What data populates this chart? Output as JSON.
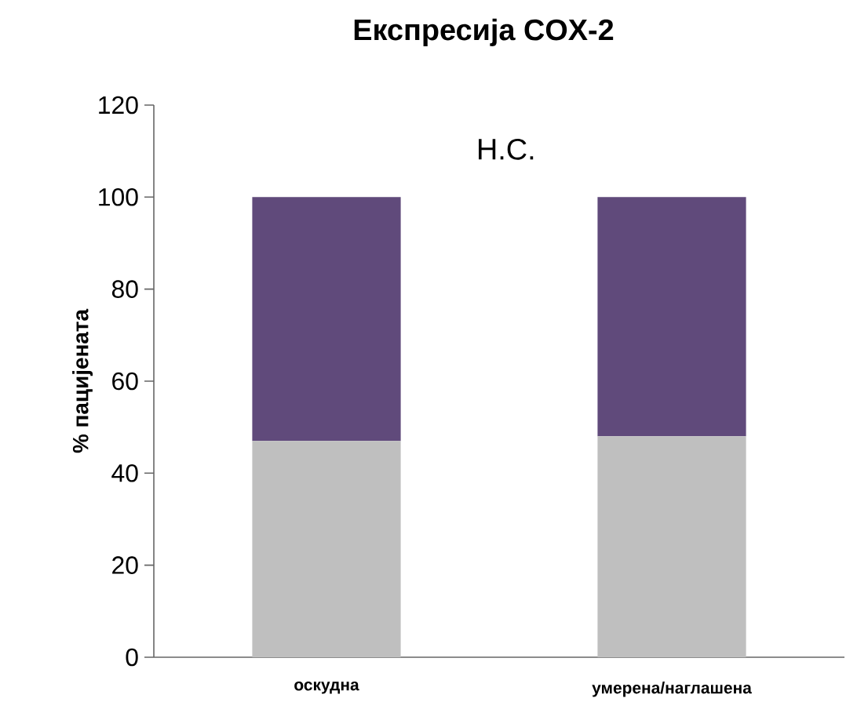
{
  "chart_data": {
    "type": "bar",
    "title": "Експресија COX-2",
    "ylabel": "% пацијената",
    "categories": [
      "оскудна",
      "умерена/наглашена"
    ],
    "series": [
      {
        "color": "#bfbfbf",
        "values": [
          47,
          48
        ]
      },
      {
        "color": "#604a7b",
        "values": [
          53,
          52
        ]
      }
    ],
    "stacked": true,
    "ylim": [
      0,
      120
    ],
    "yticks": [
      0,
      20,
      40,
      60,
      80,
      100,
      120
    ],
    "annotations": [
      "Н.С."
    ]
  }
}
